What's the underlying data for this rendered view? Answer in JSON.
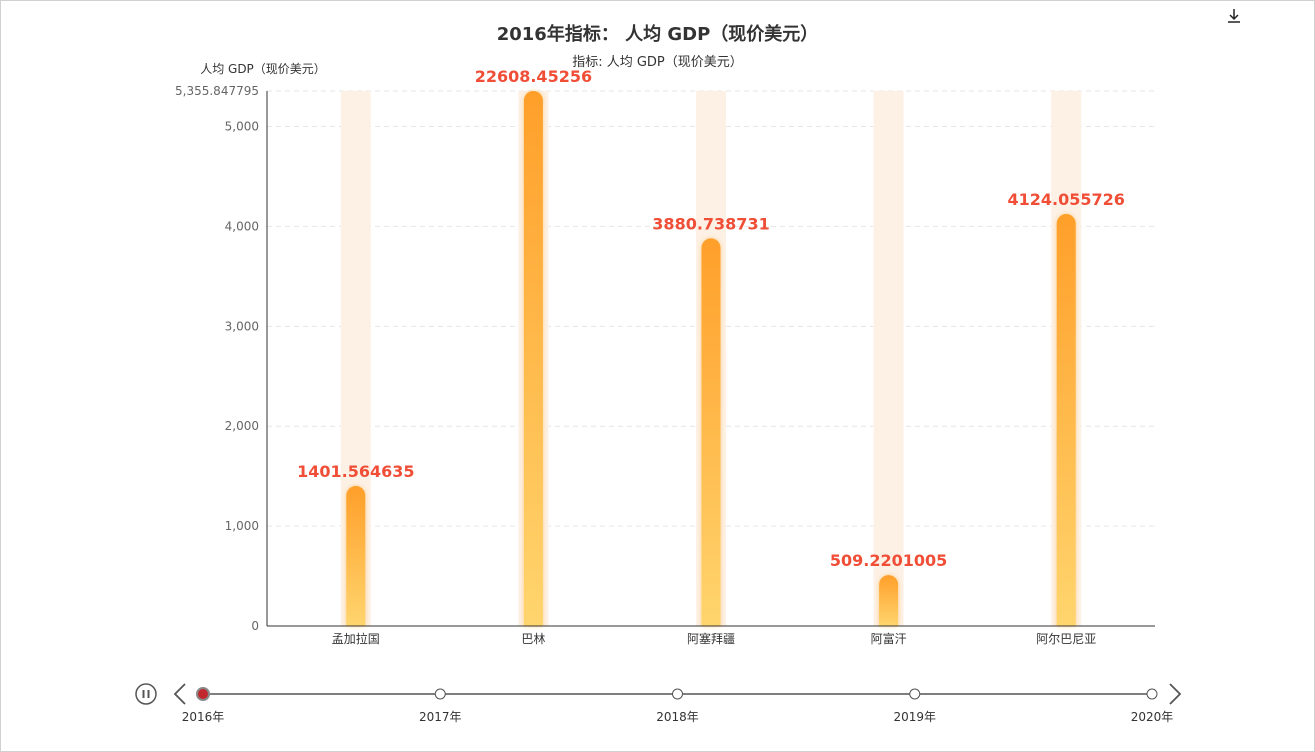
{
  "chart_data": {
    "type": "bar",
    "title": "2016年指标： 人均 GDP（现价美元）",
    "subtitle": "指标: 人均 GDP（现价美元）",
    "ylabel": "人均 GDP（现价美元）",
    "categories": [
      "孟加拉国",
      "巴林",
      "阿塞拜疆",
      "阿富汗",
      "阿尔巴尼亚"
    ],
    "values": [
      1401.564635,
      22608.45256,
      3880.738731,
      509.2201005,
      4124.055726
    ],
    "value_labels": [
      "1401.564635",
      "22608.45256",
      "3880.738731",
      "509.2201005",
      "4124.055726"
    ],
    "ylim": [
      0,
      5355.847795
    ],
    "y_ticks": [
      0,
      1000,
      2000,
      3000,
      4000,
      5000
    ],
    "y_tick_labels": [
      "0",
      "1,000",
      "2,000",
      "3,000",
      "4,000",
      "5,000"
    ],
    "y_max_label": "5,355.847795",
    "grid": true,
    "colors": {
      "bar_top": "#ff9f2a",
      "bar_bottom": "#ffd56e",
      "label": "#f04e37",
      "background_bar": "#fdf1e6"
    }
  },
  "timeline": {
    "years": [
      "2016年",
      "2017年",
      "2018年",
      "2019年",
      "2020年"
    ],
    "current_index": 0,
    "active_color": "#c0282e",
    "icons": {
      "play": "pause-icon",
      "prev": "chevron-left-icon",
      "next": "chevron-right-icon"
    }
  },
  "toolbox": {
    "icon": "download-icon"
  }
}
